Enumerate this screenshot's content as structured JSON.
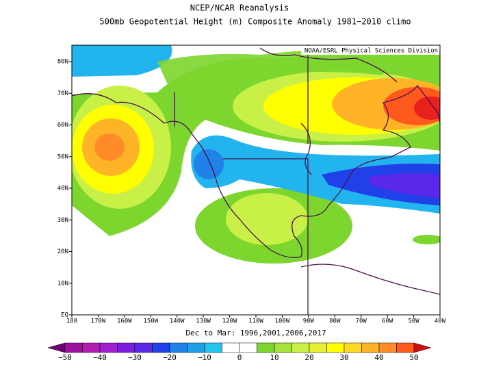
{
  "header": {
    "title": "NCEP/NCAR Reanalysis",
    "subtitle": "500mb Geopotential Height (m) Composite Anomaly 1981−2010 climo",
    "credit": "NOAA/ESRL Physical Sciences Division"
  },
  "map": {
    "lat_ticks": [
      "EQ",
      "10N",
      "20N",
      "30N",
      "40N",
      "50N",
      "60N",
      "70N",
      "80N"
    ],
    "lon_ticks": [
      "180",
      "170W",
      "160W",
      "150W",
      "140W",
      "130W",
      "120W",
      "110W",
      "100W",
      "90W",
      "80W",
      "70W",
      "60W",
      "50W",
      "40W"
    ],
    "caption": "Dec to Mar: 1996,2001,2006,2017"
  },
  "colorbar": {
    "labels": [
      "−50",
      "−40",
      "−30",
      "−20",
      "−10",
      "0",
      "10",
      "20",
      "30",
      "40",
      "50"
    ]
  }
}
